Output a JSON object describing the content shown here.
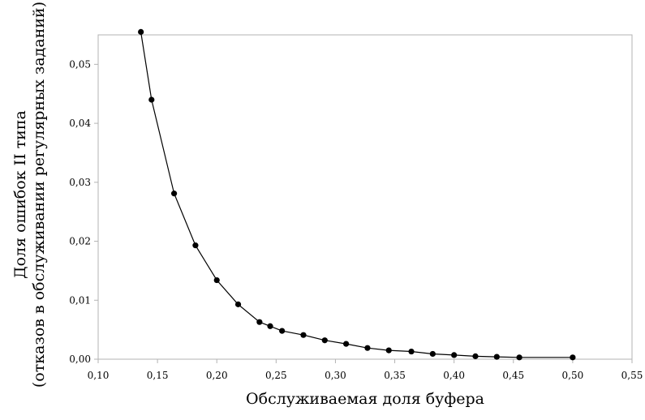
{
  "chart_data": {
    "type": "line",
    "title": "",
    "xlabel": "Обслуживаемая доля буфера",
    "ylabel_line1": "Доля ошибок II типа",
    "ylabel_line2": "(отказов в обслуживании регулярных заданий)",
    "xlim": [
      0.1,
      0.55
    ],
    "ylim": [
      0.0,
      0.055
    ],
    "x_ticks": [
      {
        "value": 0.1,
        "label": "0,10"
      },
      {
        "value": 0.15,
        "label": "0,15"
      },
      {
        "value": 0.2,
        "label": "0,20"
      },
      {
        "value": 0.25,
        "label": "0,25"
      },
      {
        "value": 0.3,
        "label": "0,30"
      },
      {
        "value": 0.35,
        "label": "0,35"
      },
      {
        "value": 0.4,
        "label": "0,40"
      },
      {
        "value": 0.45,
        "label": "0,45"
      },
      {
        "value": 0.5,
        "label": "0,50"
      },
      {
        "value": 0.55,
        "label": "0,55"
      }
    ],
    "y_ticks": [
      {
        "value": 0.0,
        "label": "0,00"
      },
      {
        "value": 0.01,
        "label": "0,01"
      },
      {
        "value": 0.02,
        "label": "0,02"
      },
      {
        "value": 0.03,
        "label": "0,03"
      },
      {
        "value": 0.04,
        "label": "0,04"
      },
      {
        "value": 0.05,
        "label": "0,05"
      }
    ],
    "grid": false,
    "legend": "none",
    "colors": {
      "line": "#000000",
      "marker": "#000000",
      "frame": "#b3b3b3"
    },
    "series": [
      {
        "x": [
          0.136,
          0.145,
          0.164,
          0.182,
          0.2,
          0.218,
          0.236,
          0.245,
          0.255,
          0.273,
          0.291,
          0.309,
          0.327,
          0.345,
          0.364,
          0.382,
          0.4,
          0.418,
          0.436,
          0.455,
          0.5
        ],
        "y": [
          0.0555,
          0.044,
          0.0281,
          0.0193,
          0.0134,
          0.0093,
          0.0063,
          0.0056,
          0.0048,
          0.0041,
          0.0032,
          0.0026,
          0.0019,
          0.0015,
          0.0013,
          0.0009,
          0.0007,
          0.0005,
          0.0004,
          0.0003,
          0.0003
        ]
      }
    ]
  }
}
